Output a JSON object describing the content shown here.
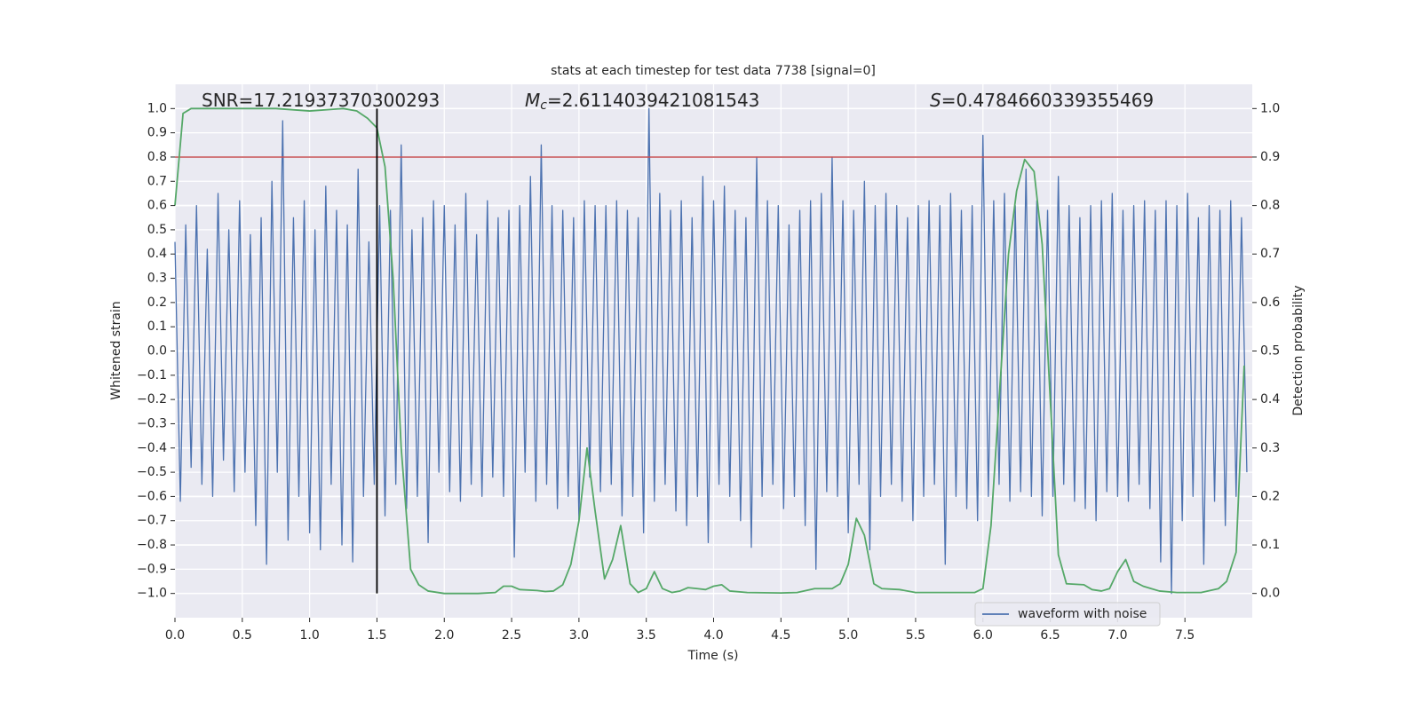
{
  "chart_data": {
    "type": "line",
    "title": "stats at each timestep for test data 7738 [signal=0]",
    "xlabel": "Time (s)",
    "ylabel": "Whitened strain",
    "y2label": "Detection probability",
    "xlim": [
      0,
      8
    ],
    "ylim": [
      -1.1,
      1.1
    ],
    "y2lim": [
      -0.05,
      1.05
    ],
    "xticks": [
      {
        "value": 0,
        "label": "0.0"
      },
      0.5,
      {
        "value": 1,
        "label": "1.0"
      },
      1.5,
      {
        "value": 2,
        "label": "2.0"
      },
      2.5,
      {
        "value": 3,
        "label": "3.0"
      },
      3.5,
      {
        "value": 4,
        "label": "4.0"
      },
      4.5,
      {
        "value": 5,
        "label": "5.0"
      },
      5.5,
      {
        "value": 6,
        "label": "6.0"
      },
      6.5,
      {
        "value": 7,
        "label": "7.0"
      },
      7.5
    ],
    "yticks": [
      {
        "value": -1,
        "label": "−1.0"
      },
      {
        "value": -0.9,
        "label": "−0.9"
      },
      {
        "value": -0.8,
        "label": "−0.8"
      },
      {
        "value": -0.7,
        "label": "−0.7"
      },
      {
        "value": -0.6,
        "label": "−0.6"
      },
      {
        "value": -0.5,
        "label": "−0.5"
      },
      {
        "value": -0.4,
        "label": "−0.4"
      },
      {
        "value": -0.3,
        "label": "−0.3"
      },
      {
        "value": -0.2,
        "label": "−0.2"
      },
      {
        "value": -0.1,
        "label": "−0.1"
      },
      {
        "value": 0,
        "label": "0.0"
      },
      0.1,
      0.2,
      0.3,
      0.4,
      0.5,
      0.6,
      0.7,
      0.8,
      0.9,
      {
        "value": 1,
        "label": "1.0"
      }
    ],
    "y2ticks": [
      {
        "value": 0,
        "label": "0.0"
      },
      0.1,
      0.2,
      0.3,
      0.4,
      0.5,
      0.6,
      0.7,
      0.8,
      0.9,
      {
        "value": 1,
        "label": "1.0"
      }
    ],
    "grid": true,
    "legend": {
      "loc": "lower right"
    },
    "series": [
      {
        "name": "waveform with noise",
        "color": "#4c72b0",
        "x": [
          0,
          0.04,
          0.08,
          0.12,
          0.16,
          0.2,
          0.24,
          0.28,
          0.32,
          0.36,
          0.4,
          0.44,
          0.48,
          0.52,
          0.56,
          0.6,
          0.64,
          0.68,
          0.72,
          0.76,
          0.8,
          0.84,
          0.88,
          0.92,
          0.96,
          1.0,
          1.04,
          1.08,
          1.12,
          1.16,
          1.2,
          1.24,
          1.28,
          1.32,
          1.36,
          1.4,
          1.44,
          1.48,
          1.52,
          1.56,
          1.6,
          1.64,
          1.68,
          1.72,
          1.76,
          1.8,
          1.84,
          1.88,
          1.92,
          1.96,
          2.0,
          2.04,
          2.08,
          2.12,
          2.16,
          2.2,
          2.24,
          2.28,
          2.32,
          2.36,
          2.4,
          2.44,
          2.48,
          2.52,
          2.56,
          2.6,
          2.64,
          2.68,
          2.72,
          2.76,
          2.8,
          2.84,
          2.88,
          2.92,
          2.96,
          3.0,
          3.04,
          3.08,
          3.12,
          3.16,
          3.2,
          3.24,
          3.28,
          3.32,
          3.36,
          3.4,
          3.44,
          3.48,
          3.52,
          3.56,
          3.6,
          3.64,
          3.68,
          3.72,
          3.76,
          3.8,
          3.84,
          3.88,
          3.92,
          3.96,
          4.0,
          4.04,
          4.08,
          4.12,
          4.16,
          4.2,
          4.24,
          4.28,
          4.32,
          4.36,
          4.4,
          4.44,
          4.48,
          4.52,
          4.56,
          4.6,
          4.64,
          4.68,
          4.72,
          4.76,
          4.8,
          4.84,
          4.88,
          4.92,
          4.96,
          5.0,
          5.04,
          5.08,
          5.12,
          5.16,
          5.2,
          5.24,
          5.28,
          5.32,
          5.36,
          5.4,
          5.44,
          5.48,
          5.52,
          5.56,
          5.6,
          5.64,
          5.68,
          5.72,
          5.76,
          5.8,
          5.84,
          5.88,
          5.92,
          5.96,
          6.0,
          6.04,
          6.08,
          6.12,
          6.16,
          6.2,
          6.24,
          6.28,
          6.32,
          6.36,
          6.4,
          6.44,
          6.48,
          6.52,
          6.56,
          6.6,
          6.64,
          6.68,
          6.72,
          6.76,
          6.8,
          6.84,
          6.88,
          6.92,
          6.96,
          7.0,
          7.04,
          7.08,
          7.12,
          7.16,
          7.2,
          7.24,
          7.28,
          7.32,
          7.36,
          7.4,
          7.44,
          7.48,
          7.52,
          7.56,
          7.6,
          7.64,
          7.68,
          7.72,
          7.76,
          7.8,
          7.84,
          7.88,
          7.92,
          7.96
        ],
        "values": [
          0.45,
          -0.62,
          0.52,
          -0.48,
          0.6,
          -0.55,
          0.42,
          -0.6,
          0.65,
          -0.45,
          0.5,
          -0.58,
          0.62,
          -0.5,
          0.48,
          -0.72,
          0.55,
          -0.88,
          0.7,
          -0.5,
          0.95,
          -0.78,
          0.55,
          -0.6,
          0.62,
          -0.75,
          0.5,
          -0.82,
          0.68,
          -0.55,
          0.58,
          -0.8,
          0.52,
          -0.87,
          0.75,
          -0.6,
          0.45,
          -0.55,
          0.6,
          -0.68,
          0.58,
          -0.55,
          0.85,
          -0.65,
          0.5,
          -0.6,
          0.55,
          -0.79,
          0.62,
          -0.5,
          0.6,
          -0.58,
          0.52,
          -0.62,
          0.65,
          -0.55,
          0.48,
          -0.6,
          0.62,
          -0.52,
          0.55,
          -0.6,
          0.58,
          -0.85,
          0.6,
          -0.5,
          0.72,
          -0.62,
          0.85,
          -0.55,
          0.6,
          -0.65,
          0.58,
          -0.6,
          0.55,
          -0.7,
          0.62,
          -0.52,
          0.6,
          -0.58,
          0.6,
          -0.55,
          0.62,
          -0.68,
          0.58,
          -0.6,
          0.55,
          -0.75,
          1.0,
          -0.62,
          0.65,
          -0.55,
          0.58,
          -0.66,
          0.62,
          -0.72,
          0.55,
          -0.6,
          0.72,
          -0.79,
          0.62,
          -0.55,
          0.68,
          -0.6,
          0.58,
          -0.7,
          0.55,
          -0.81,
          0.8,
          -0.6,
          0.62,
          -0.55,
          0.6,
          -0.65,
          0.52,
          -0.6,
          0.58,
          -0.72,
          0.62,
          -0.9,
          0.65,
          -0.58,
          0.8,
          -0.6,
          0.62,
          -0.75,
          0.58,
          -0.55,
          0.7,
          -0.82,
          0.6,
          -0.6,
          0.65,
          -0.55,
          0.6,
          -0.62,
          0.55,
          -0.7,
          0.6,
          -0.6,
          0.62,
          -0.55,
          0.6,
          -0.88,
          0.65,
          -0.6,
          0.58,
          -0.65,
          0.6,
          -0.7,
          0.89,
          -0.6,
          0.62,
          -0.55,
          0.65,
          -0.62,
          0.6,
          -0.58,
          0.75,
          -0.6,
          0.62,
          -0.68,
          0.58,
          -0.6,
          0.72,
          -0.55,
          0.6,
          -0.62,
          0.55,
          -0.65,
          0.6,
          -0.7,
          0.62,
          -0.58,
          0.65,
          -0.6,
          0.58,
          -0.62,
          0.6,
          -0.55,
          0.62,
          -0.65,
          0.58,
          -0.87,
          0.62,
          -1.0,
          0.6,
          -0.7,
          0.65,
          -0.6,
          0.55,
          -0.88,
          0.6,
          -0.62,
          0.58,
          -0.72,
          0.62,
          -0.6,
          0.55,
          -0.5
        ]
      },
      {
        "color": "#55a868",
        "axis": "y2",
        "x": [
          0,
          0.06,
          0.12,
          0.25,
          0.5,
          0.75,
          1.0,
          1.25,
          1.35,
          1.43,
          1.5,
          1.56,
          1.62,
          1.68,
          1.75,
          1.81,
          1.88,
          2.0,
          2.25,
          2.38,
          2.44,
          2.5,
          2.56,
          2.69,
          2.75,
          2.81,
          2.88,
          2.94,
          3.0,
          3.06,
          3.12,
          3.19,
          3.25,
          3.31,
          3.38,
          3.44,
          3.5,
          3.56,
          3.62,
          3.69,
          3.75,
          3.81,
          3.88,
          3.94,
          4.0,
          4.06,
          4.12,
          4.25,
          4.5,
          4.62,
          4.75,
          4.88,
          4.94,
          5.0,
          5.06,
          5.12,
          5.19,
          5.25,
          5.38,
          5.5,
          5.75,
          5.94,
          6.0,
          6.06,
          6.12,
          6.19,
          6.25,
          6.31,
          6.38,
          6.44,
          6.5,
          6.56,
          6.62,
          6.75,
          6.81,
          6.88,
          6.94,
          7.0,
          7.06,
          7.12,
          7.19,
          7.25,
          7.31,
          7.44,
          7.62,
          7.75,
          7.81,
          7.88,
          7.94
        ],
        "values": [
          0.8,
          0.99,
          1.0,
          1.0,
          1.0,
          1.0,
          0.995,
          1.0,
          0.995,
          0.98,
          0.96,
          0.88,
          0.65,
          0.3,
          0.05,
          0.018,
          0.005,
          0.0,
          0.0,
          0.002,
          0.015,
          0.015,
          0.008,
          0.006,
          0.004,
          0.005,
          0.018,
          0.06,
          0.15,
          0.3,
          0.17,
          0.03,
          0.07,
          0.14,
          0.02,
          0.002,
          0.01,
          0.045,
          0.01,
          0.002,
          0.005,
          0.012,
          0.01,
          0.008,
          0.015,
          0.018,
          0.005,
          0.002,
          0.001,
          0.002,
          0.01,
          0.01,
          0.02,
          0.06,
          0.155,
          0.12,
          0.02,
          0.01,
          0.008,
          0.002,
          0.002,
          0.002,
          0.01,
          0.14,
          0.4,
          0.7,
          0.83,
          0.895,
          0.87,
          0.72,
          0.4,
          0.08,
          0.02,
          0.018,
          0.008,
          0.005,
          0.01,
          0.045,
          0.07,
          0.025,
          0.015,
          0.01,
          0.005,
          0.002,
          0.002,
          0.01,
          0.025,
          0.085,
          0.47
        ]
      }
    ],
    "hlines": [
      {
        "y": 0.8,
        "color": "#c44e52"
      }
    ],
    "vlines": [
      {
        "x": 1.5,
        "ymin": -1,
        "ymax": 1,
        "color": "#000000"
      }
    ],
    "annotations": [
      {
        "text": "SNR=17.21937370300293"
      },
      {
        "symbol": "M",
        "subscript": "c",
        "text": "=2.6114039421081543"
      },
      {
        "symbol": "S",
        "text": "=0.4784660339355469"
      }
    ]
  }
}
